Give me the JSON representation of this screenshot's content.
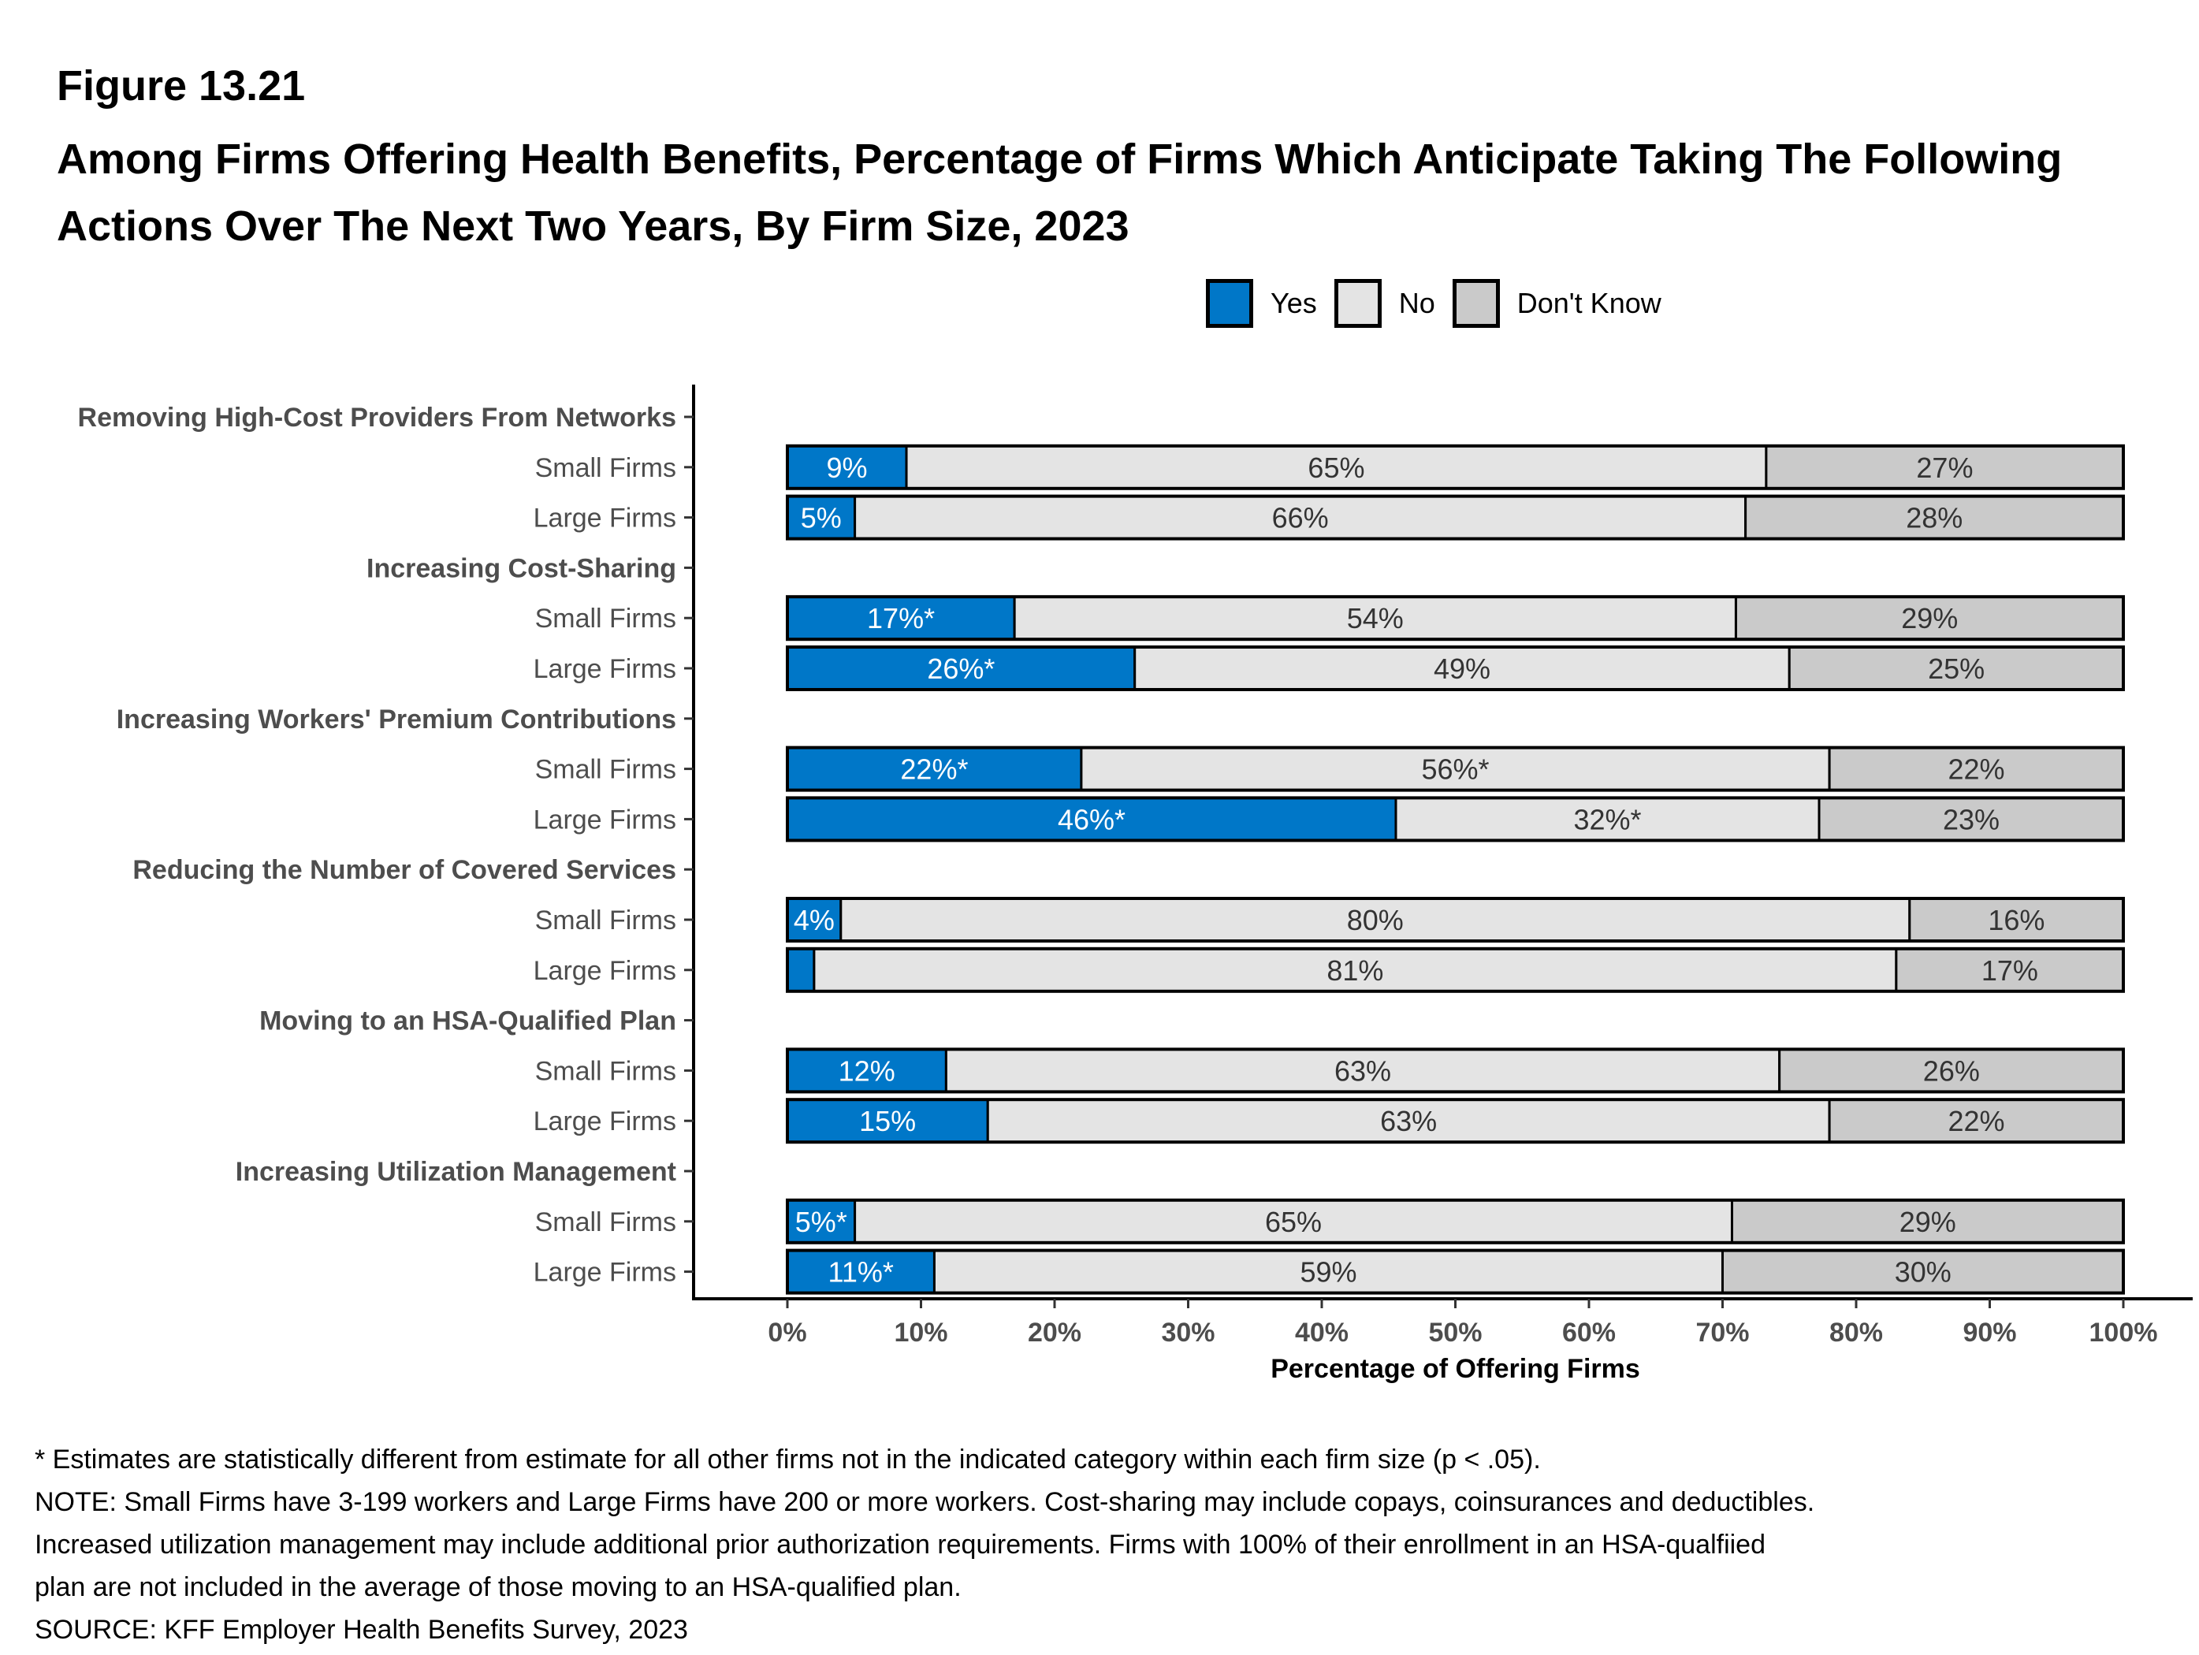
{
  "figure_label": "Figure 13.21",
  "title": "Among Firms Offering Health Benefits, Percentage of Firms Which Anticipate Taking The Following Actions Over The Next Two Years, By Firm Size, 2023",
  "colors": {
    "yes": "#0077C8",
    "no": "#E4E4E4",
    "dont_know": "#CACACA"
  },
  "legend": [
    {
      "label": "Yes",
      "key": "yes"
    },
    {
      "label": "No",
      "key": "no"
    },
    {
      "label": "Don't Know",
      "key": "dont_know"
    }
  ],
  "footnotes": [
    "* Estimates are statistically different from estimate for all other firms not in the indicated category within each firm size (p < .05).",
    "NOTE: Small Firms have 3-199 workers and Large Firms have 200 or more workers.  Cost-sharing may include copays, coinsurances and deductibles.",
    "Increased utilization management may include additional prior authorization requirements. Firms with 100% of their enrollment in an HSA-qualfiied",
    "plan are not included in the average of those moving to an HSA-qualified plan.",
    "SOURCE: KFF Employer Health Benefits Survey, 2023"
  ],
  "chart_data": {
    "type": "bar",
    "orientation": "horizontal",
    "stacked": true,
    "title": "Among Firms Offering Health Benefits, Percentage of Firms Which Anticipate Taking The Following Actions Over The Next Two Years, By Firm Size, 2023",
    "xlabel": "Percentage of Offering Firms",
    "ylabel": "",
    "xlim": [
      0,
      100
    ],
    "x_ticks": [
      "0%",
      "10%",
      "20%",
      "30%",
      "40%",
      "50%",
      "60%",
      "70%",
      "80%",
      "90%",
      "100%"
    ],
    "legend_position": "top-right",
    "series_names": [
      "Yes",
      "No",
      "Don't Know"
    ],
    "groups": [
      {
        "name": "Removing High-Cost Providers From Networks",
        "rows": [
          {
            "label": "Small Firms",
            "values": [
              9,
              65,
              27
            ],
            "labels": [
              "9%",
              "65%",
              "27%"
            ]
          },
          {
            "label": "Large Firms",
            "values": [
              5,
              66,
              28
            ],
            "labels": [
              "5%",
              "66%",
              "28%"
            ]
          }
        ]
      },
      {
        "name": "Increasing Cost-Sharing",
        "rows": [
          {
            "label": "Small Firms",
            "values": [
              17,
              54,
              29
            ],
            "labels": [
              "17%*",
              "54%",
              "29%"
            ]
          },
          {
            "label": "Large Firms",
            "values": [
              26,
              49,
              25
            ],
            "labels": [
              "26%*",
              "49%",
              "25%"
            ]
          }
        ]
      },
      {
        "name": "Increasing Workers' Premium Contributions",
        "rows": [
          {
            "label": "Small Firms",
            "values": [
              22,
              56,
              22
            ],
            "labels": [
              "22%*",
              "56%*",
              "22%"
            ]
          },
          {
            "label": "Large Firms",
            "values": [
              46,
              32,
              23
            ],
            "labels": [
              "46%*",
              "32%*",
              "23%"
            ]
          }
        ]
      },
      {
        "name": "Reducing the Number of Covered Services",
        "rows": [
          {
            "label": "Small Firms",
            "values": [
              4,
              80,
              16
            ],
            "labels": [
              "4%",
              "80%",
              "16%"
            ]
          },
          {
            "label": "Large Firms",
            "values": [
              2,
              81,
              17
            ],
            "labels": [
              "",
              "81%",
              "17%"
            ]
          }
        ]
      },
      {
        "name": "Moving to an HSA-Qualified Plan",
        "rows": [
          {
            "label": "Small Firms",
            "values": [
              12,
              63,
              26
            ],
            "labels": [
              "12%",
              "63%",
              "26%"
            ]
          },
          {
            "label": "Large Firms",
            "values": [
              15,
              63,
              22
            ],
            "labels": [
              "15%",
              "63%",
              "22%"
            ]
          }
        ]
      },
      {
        "name": "Increasing Utilization Management",
        "rows": [
          {
            "label": "Small Firms",
            "values": [
              5,
              65,
              29
            ],
            "labels": [
              "5%*",
              "65%",
              "29%"
            ]
          },
          {
            "label": "Large Firms",
            "values": [
              11,
              59,
              30
            ],
            "labels": [
              "11%*",
              "59%",
              "30%"
            ]
          }
        ]
      }
    ]
  }
}
